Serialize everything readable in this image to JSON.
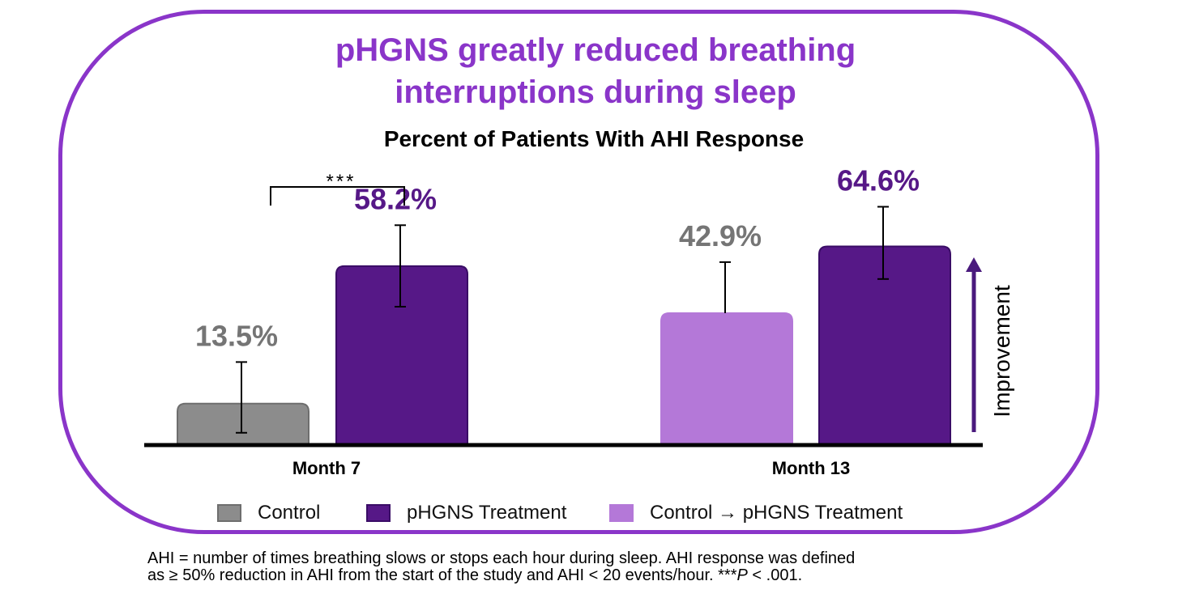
{
  "headline": {
    "line1": "pHGNS greatly reduced breathing",
    "line2": "interruptions during sleep"
  },
  "colors": {
    "frame": "#8a35c9",
    "headline": "#8a35c9",
    "control": "#8c8c8c",
    "treatment": "#561887",
    "crossover": "#b478d8",
    "treatment_label": "#561887",
    "control_label": "#757575",
    "arrow": "#4a1a7d"
  },
  "chart_data": {
    "type": "bar",
    "title": "Percent of Patients With AHI Response",
    "categories": [
      "Month 7",
      "Month 13"
    ],
    "bars": [
      {
        "category": "Month 7",
        "group": "Control",
        "value": 13.5,
        "label": "13.5%",
        "err_low": 4.0,
        "err_high": 27.0
      },
      {
        "category": "Month 7",
        "group": "pHGNS Treatment",
        "value": 58.2,
        "label": "58.2%",
        "err_low": 45.0,
        "err_high": 71.5
      },
      {
        "category": "Month 13",
        "group": "Control → pHGNS Treatment",
        "value": 42.9,
        "label": "42.9%",
        "err_low": 42.9,
        "err_high": 59.5
      },
      {
        "category": "Month 13",
        "group": "pHGNS Treatment",
        "value": 64.6,
        "label": "64.6%",
        "err_low": 54.0,
        "err_high": 77.5
      }
    ],
    "ylim": [
      0,
      100
    ],
    "significance": {
      "label": "***",
      "between": [
        "Control",
        "pHGNS Treatment"
      ],
      "category": "Month 7"
    },
    "arrow_label": "Improvement",
    "legend": [
      "Control",
      "pHGNS Treatment",
      "Control → pHGNS Treatment"
    ]
  },
  "footnote": {
    "line1": "AHI = number of times breathing slows or stops each hour during sleep. AHI response was defined",
    "line2_pre": "as ≥ 50% reduction in AHI from the start of the study and AHI < 20 events/hour. ***",
    "line2_p": "P",
    "line2_post": " < .001."
  }
}
